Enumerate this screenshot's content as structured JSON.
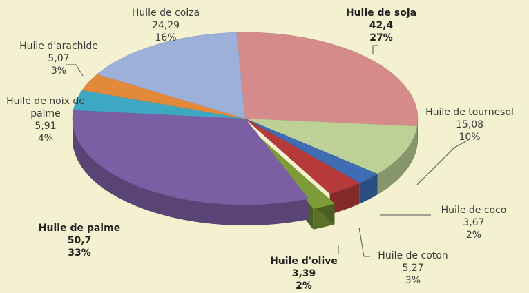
{
  "chart_data": {
    "type": "pie",
    "categories": [
      "Huile de soja",
      "Huile de tournesol",
      "Huile de coco",
      "Huile de coton",
      "Huile d'olive",
      "Huile de palme",
      "Huile de noix de palme",
      "Huile d'arachide",
      "Huile de colza"
    ],
    "values": [
      42.4,
      15.08,
      3.67,
      5.27,
      3.39,
      50.7,
      5.91,
      5.07,
      24.29
    ],
    "value_labels": [
      "42,4",
      "15,08",
      "3,67",
      "5,27",
      "3,39",
      "50,7",
      "5,91",
      "5,07",
      "24,29"
    ],
    "percent_labels": [
      "27%",
      "10%",
      "2%",
      "3%",
      "2%",
      "33%",
      "4%",
      "3%",
      "16%"
    ],
    "colors": [
      "#d68b8b",
      "#bdd196",
      "#3f6db3",
      "#b63a3a",
      "#7d9c38",
      "#7b5ea3",
      "#3ea8c2",
      "#e38a3a",
      "#9db0da"
    ]
  }
}
